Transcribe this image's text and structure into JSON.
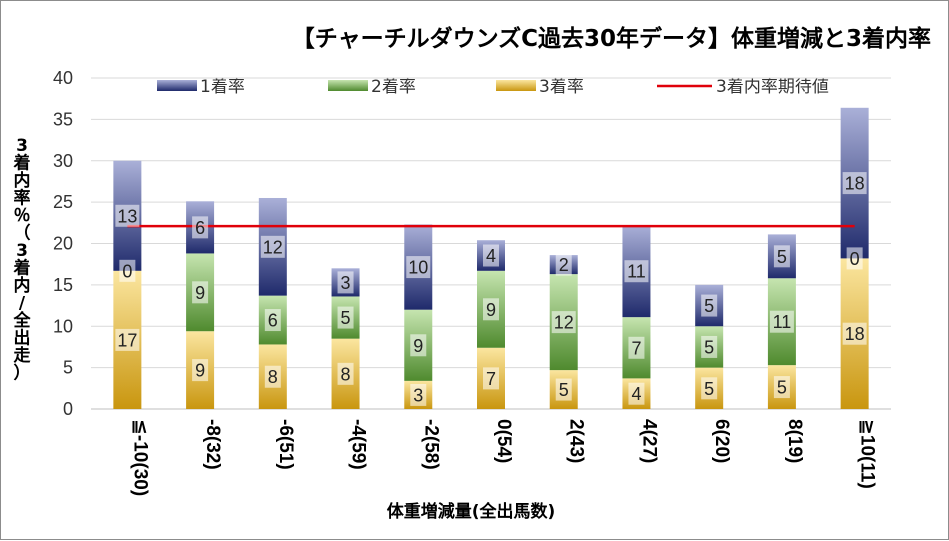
{
  "chart_data": {
    "type": "bar",
    "stacked": true,
    "title": "【チャーチルダウンズC過去30年データ】体重増減と3着内率",
    "xlabel": "体重増減量(全出馬数)",
    "ylabel": "3着内率％（3着内/全出走）",
    "ylim": [
      0,
      40
    ],
    "yticks": [
      0,
      5,
      10,
      15,
      20,
      25,
      30,
      35,
      40
    ],
    "grid": true,
    "legend_position": "top",
    "categories": [
      "≦-10(30)",
      "-8(32)",
      "-6(51)",
      "-4(59)",
      "-2(58)",
      "0(54)",
      "2(43)",
      "4(27)",
      "6(20)",
      "8(19)",
      "≧10(11)"
    ],
    "series": [
      {
        "name": "3着率",
        "values": [
          16.7,
          9.4,
          7.8,
          8.5,
          3.4,
          7.4,
          4.7,
          3.7,
          5.0,
          5.3,
          18.2
        ],
        "labels": [
          "17",
          "9",
          "8",
          "8",
          "3",
          "7",
          "5",
          "4",
          "5",
          "5",
          "18"
        ],
        "color_light": "#fbe6a0",
        "color_dark": "#c9960f"
      },
      {
        "name": "2着率",
        "values": [
          0.0,
          9.4,
          5.9,
          5.1,
          8.6,
          9.3,
          11.6,
          7.4,
          5.0,
          10.5,
          0.0
        ],
        "labels": [
          "0",
          "9",
          "6",
          "5",
          "9",
          "9",
          "12",
          "7",
          "5",
          "11",
          "0"
        ],
        "color_light": "#c6e5b0",
        "color_dark": "#4f8a2e"
      },
      {
        "name": "1着率",
        "values": [
          13.3,
          6.3,
          11.8,
          3.4,
          10.3,
          3.7,
          2.3,
          11.1,
          5.0,
          5.3,
          18.2
        ],
        "labels": [
          "13",
          "6",
          "12",
          "3",
          "10",
          "4",
          "2",
          "11",
          "5",
          "5",
          "18"
        ],
        "color_light": "#aab0d8",
        "color_dark": "#1f2a6b"
      }
    ],
    "expected_line": {
      "name": "3着内率期待値",
      "value": 22.1,
      "color": "#e0000a"
    },
    "legend_order": [
      "1着率",
      "2着率",
      "3着率",
      "3着内率期待値"
    ]
  }
}
